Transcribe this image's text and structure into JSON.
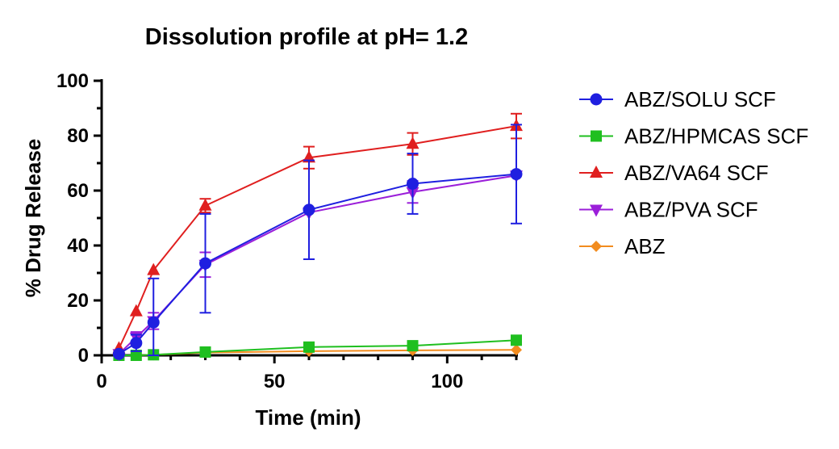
{
  "chart_data": {
    "type": "line",
    "title": "Dissolution profile at pH= 1.2",
    "xlabel": "Time (min)",
    "ylabel": "% Drug Release",
    "xlim": [
      0,
      120
    ],
    "ylim": [
      0,
      100
    ],
    "xticks": [
      0,
      50,
      100
    ],
    "yticks": [
      0,
      20,
      40,
      60,
      80,
      100
    ],
    "x": [
      5,
      10,
      15,
      30,
      60,
      90,
      120
    ],
    "legend_position": "right",
    "series": [
      {
        "name": "ABZ/SOLU SCF",
        "color": "#1f1fe0",
        "marker": "circle",
        "values": [
          0.5,
          4.5,
          12,
          33.5,
          53,
          62.5,
          66
        ],
        "errors": [
          0.5,
          3,
          16,
          18,
          18,
          11,
          18
        ]
      },
      {
        "name": "ABZ/HPMCAS SCF",
        "color": "#1fbf1f",
        "marker": "square",
        "values": [
          0,
          0,
          0.2,
          1.2,
          3,
          3.5,
          5.5
        ],
        "errors": [
          0,
          0,
          0,
          0,
          0,
          0,
          0
        ]
      },
      {
        "name": "ABZ/VA64 SCF",
        "color": "#e01f1f",
        "marker": "triangle-up",
        "values": [
          2.5,
          16,
          31,
          54.5,
          72,
          77,
          83.5
        ],
        "errors": [
          0,
          0,
          0,
          2.5,
          4,
          4,
          4.5
        ]
      },
      {
        "name": "ABZ/PVA SCF",
        "color": "#9b1fd9",
        "marker": "triangle-down",
        "values": [
          0.5,
          6.5,
          12.5,
          33,
          52,
          59.5,
          65.5
        ],
        "errors": [
          0.5,
          2,
          3,
          4.5,
          0,
          4,
          0
        ]
      },
      {
        "name": "ABZ",
        "color": "#f28c1f",
        "marker": "diamond",
        "values": [
          0,
          0,
          0.2,
          1,
          1.5,
          1.8,
          2
        ],
        "errors": [
          0,
          0,
          0,
          0,
          0,
          0,
          0
        ]
      }
    ]
  }
}
